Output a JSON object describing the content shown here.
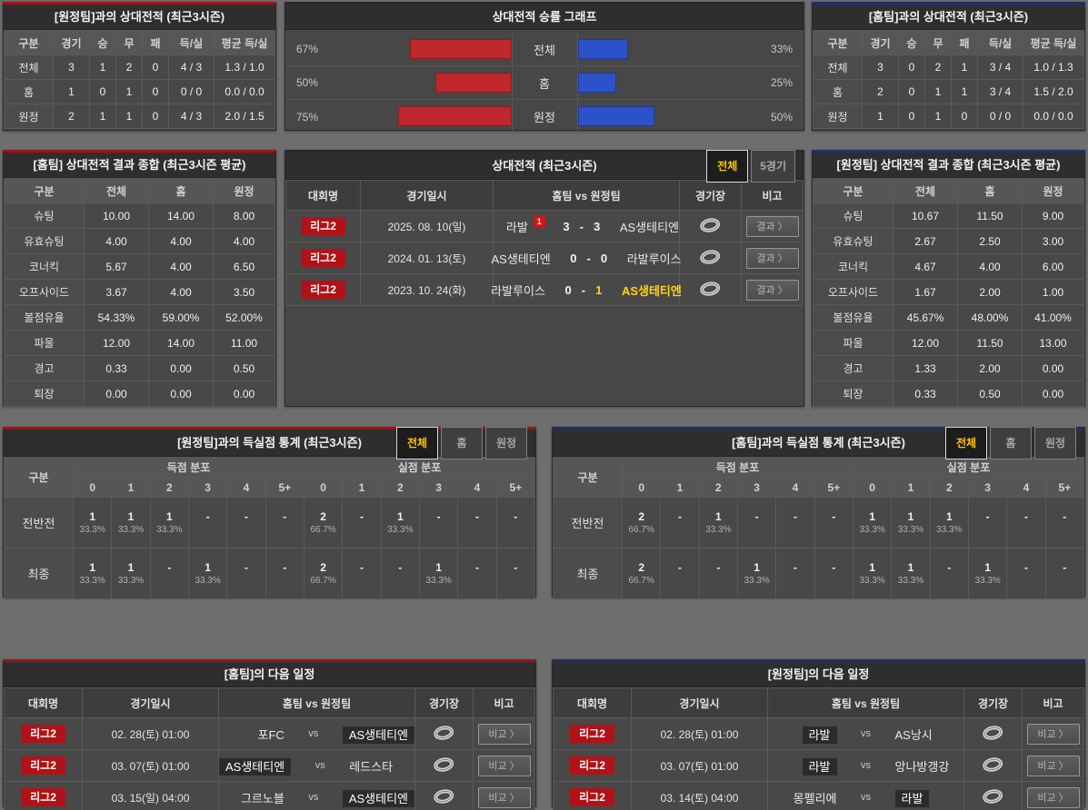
{
  "ui": {
    "vs": "vs",
    "chevron": "〉",
    "score_dash": "-"
  },
  "colors": {
    "page_bg": "#6e6e6e",
    "panel_bg": "#474747",
    "title_bg": "#2e2e2e",
    "home_accent_red": "#a01313",
    "away_accent_blue": "#1e2f6d",
    "league_badge_red": "#b11217",
    "chart_home_red": "#c0272d",
    "chart_away_blue": "#2b52cb",
    "active_tab_yellow": "#ffc600",
    "winner_yellow": "#ffd11a"
  },
  "chart_data": {
    "type": "bar",
    "orientation": "horizontal-mirrored",
    "title": "상대전적 승률 그래프",
    "categories": [
      "전체",
      "홈",
      "원정"
    ],
    "series": [
      {
        "name": "홈팀 승률",
        "color": "#c0272d",
        "values": [
          67,
          50,
          75
        ]
      },
      {
        "name": "원정팀 승률",
        "color": "#2b52cb",
        "values": [
          33,
          25,
          50
        ]
      }
    ],
    "unit": "%"
  },
  "panels": {
    "away_h2h": {
      "title": "[원정팀]과의 상대전적 (최근3시즌)",
      "headers": [
        "구분",
        "경기",
        "승",
        "무",
        "패",
        "득/실",
        "평균 득/실"
      ],
      "rows": [
        [
          "전체",
          "3",
          "1",
          "2",
          "0",
          "4 / 3",
          "1.3 / 1.0"
        ],
        [
          "홈",
          "1",
          "0",
          "1",
          "0",
          "0 / 0",
          "0.0 / 0.0"
        ],
        [
          "원정",
          "2",
          "1",
          "1",
          "0",
          "4 / 3",
          "2.0 / 1.5"
        ]
      ]
    },
    "win_rate_chart": {
      "title": "상대전적 승률 그래프",
      "categories": [
        "전체",
        "홈",
        "원정"
      ],
      "left": {
        "labels": [
          "67%",
          "50%",
          "75%"
        ],
        "values": [
          67,
          50,
          75
        ]
      },
      "right": {
        "labels": [
          "33%",
          "25%",
          "50%"
        ],
        "values": [
          33,
          25,
          50
        ]
      }
    },
    "home_h2h": {
      "title": "[홈팀]과의 상대전적 (최근3시즌)",
      "headers": [
        "구분",
        "경기",
        "승",
        "무",
        "패",
        "득/실",
        "평균 득/실"
      ],
      "rows": [
        [
          "전체",
          "3",
          "0",
          "2",
          "1",
          "3 / 4",
          "1.0 / 1.3"
        ],
        [
          "홈",
          "2",
          "0",
          "1",
          "1",
          "3 / 4",
          "1.5 / 2.0"
        ],
        [
          "원정",
          "1",
          "0",
          "1",
          "0",
          "0 / 0",
          "0.0 / 0.0"
        ]
      ]
    },
    "home_summary": {
      "title": "[홈팀] 상대전적 결과 종합 (최근3시즌 평균)",
      "headers": [
        "구분",
        "전체",
        "홈",
        "원정"
      ],
      "rows": [
        [
          "슈팅",
          "10.00",
          "14.00",
          "8.00"
        ],
        [
          "유효슈팅",
          "4.00",
          "4.00",
          "4.00"
        ],
        [
          "코너킥",
          "5.67",
          "4.00",
          "6.50"
        ],
        [
          "오프사이드",
          "3.67",
          "4.00",
          "3.50"
        ],
        [
          "볼점유율",
          "54.33%",
          "59.00%",
          "52.00%"
        ],
        [
          "파울",
          "12.00",
          "14.00",
          "11.00"
        ],
        [
          "경고",
          "0.33",
          "0.00",
          "0.50"
        ],
        [
          "퇴장",
          "0.00",
          "0.00",
          "0.00"
        ]
      ]
    },
    "away_summary": {
      "title": "[원정팀] 상대전적 결과 종합 (최근3시즌 평균)",
      "headers": [
        "구분",
        "전체",
        "홈",
        "원정"
      ],
      "rows": [
        [
          "슈팅",
          "10.67",
          "11.50",
          "9.00"
        ],
        [
          "유효슈팅",
          "2.67",
          "2.50",
          "3.00"
        ],
        [
          "코너킥",
          "4.67",
          "4.00",
          "6.00"
        ],
        [
          "오프사이드",
          "1.67",
          "2.00",
          "1.00"
        ],
        [
          "볼점유율",
          "45.67%",
          "48.00%",
          "41.00%"
        ],
        [
          "파울",
          "12.00",
          "11.50",
          "13.00"
        ],
        [
          "경고",
          "1.33",
          "2.00",
          "0.00"
        ],
        [
          "퇴장",
          "0.33",
          "0.50",
          "0.00"
        ]
      ]
    },
    "h2h_matches": {
      "title": "상대전적 (최근3시즌)",
      "tabs": [
        "전체",
        "5경기"
      ],
      "active_tab": "전체",
      "headers": [
        "대회명",
        "경기일시",
        "홈팀 vs 원정팀",
        "경기장",
        "비고"
      ],
      "action_label": "결과",
      "rows": [
        {
          "league": "리그2",
          "date": "2025. 08. 10(일)",
          "home": "라발",
          "home_red_cards": "1",
          "home_score": "3",
          "away_score": "3",
          "away": "AS생테티엔"
        },
        {
          "league": "리그2",
          "date": "2024. 01. 13(토)",
          "home": "AS생테티엔",
          "home_score": "0",
          "away_score": "0",
          "away": "라발루이스"
        },
        {
          "league": "리그2",
          "date": "2023. 10. 24(화)",
          "home": "라발루이스",
          "home_score": "0",
          "away_score": "1",
          "away": "AS생테티엔",
          "winner": "away"
        }
      ]
    },
    "away_goal_stats": {
      "title": "[원정팀]과의 득실점 통계 (최근3시즌)",
      "tabs": [
        "전체",
        "홈",
        "원정"
      ],
      "active_tab": "전체",
      "corner": "구분",
      "group_headers": [
        "득점 분포",
        "실점 분포"
      ],
      "col_headers": [
        "0",
        "1",
        "2",
        "3",
        "4",
        "5+"
      ],
      "rows": [
        {
          "label": "전반전",
          "cells": [
            {
              "n": "1",
              "p": "33.3%"
            },
            {
              "n": "1",
              "p": "33.3%"
            },
            {
              "n": "1",
              "p": "33.3%"
            },
            {
              "n": "-",
              "p": ""
            },
            {
              "n": "-",
              "p": ""
            },
            {
              "n": "-",
              "p": ""
            },
            {
              "n": "2",
              "p": "66.7%"
            },
            {
              "n": "-",
              "p": ""
            },
            {
              "n": "1",
              "p": "33.3%"
            },
            {
              "n": "-",
              "p": ""
            },
            {
              "n": "-",
              "p": ""
            },
            {
              "n": "-",
              "p": ""
            }
          ]
        },
        {
          "label": "최종",
          "cells": [
            {
              "n": "1",
              "p": "33.3%"
            },
            {
              "n": "1",
              "p": "33.3%"
            },
            {
              "n": "-",
              "p": ""
            },
            {
              "n": "1",
              "p": "33.3%"
            },
            {
              "n": "-",
              "p": ""
            },
            {
              "n": "-",
              "p": ""
            },
            {
              "n": "2",
              "p": "66.7%"
            },
            {
              "n": "-",
              "p": ""
            },
            {
              "n": "-",
              "p": ""
            },
            {
              "n": "1",
              "p": "33.3%"
            },
            {
              "n": "-",
              "p": ""
            },
            {
              "n": "-",
              "p": ""
            }
          ]
        }
      ]
    },
    "home_goal_stats": {
      "title": "[홈팀]과의 득실점 통계 (최근3시즌)",
      "tabs": [
        "전체",
        "홈",
        "원정"
      ],
      "active_tab": "전체",
      "corner": "구분",
      "group_headers": [
        "득점 분포",
        "실점 분포"
      ],
      "col_headers": [
        "0",
        "1",
        "2",
        "3",
        "4",
        "5+"
      ],
      "rows": [
        {
          "label": "전반전",
          "cells": [
            {
              "n": "2",
              "p": "66.7%"
            },
            {
              "n": "-",
              "p": ""
            },
            {
              "n": "1",
              "p": "33.3%"
            },
            {
              "n": "-",
              "p": ""
            },
            {
              "n": "-",
              "p": ""
            },
            {
              "n": "-",
              "p": ""
            },
            {
              "n": "1",
              "p": "33.3%"
            },
            {
              "n": "1",
              "p": "33.3%"
            },
            {
              "n": "1",
              "p": "33.3%"
            },
            {
              "n": "-",
              "p": ""
            },
            {
              "n": "-",
              "p": ""
            },
            {
              "n": "-",
              "p": ""
            }
          ]
        },
        {
          "label": "최종",
          "cells": [
            {
              "n": "2",
              "p": "66.7%"
            },
            {
              "n": "-",
              "p": ""
            },
            {
              "n": "-",
              "p": ""
            },
            {
              "n": "1",
              "p": "33.3%"
            },
            {
              "n": "-",
              "p": ""
            },
            {
              "n": "-",
              "p": ""
            },
            {
              "n": "1",
              "p": "33.3%"
            },
            {
              "n": "1",
              "p": "33.3%"
            },
            {
              "n": "-",
              "p": ""
            },
            {
              "n": "1",
              "p": "33.3%"
            },
            {
              "n": "-",
              "p": ""
            },
            {
              "n": "-",
              "p": ""
            }
          ]
        }
      ]
    },
    "home_schedule": {
      "title": "[홈팀]의 다음 일정",
      "headers": [
        "대회명",
        "경기일시",
        "홈팀 vs 원정팀",
        "경기장",
        "비고"
      ],
      "action_label": "비교",
      "rows": [
        {
          "league": "리그2",
          "date": "02. 28(토) 01:00",
          "home": "포FC",
          "away": "AS생테티엔"
        },
        {
          "league": "리그2",
          "date": "03. 07(토) 01:00",
          "home": "AS생테티엔",
          "away": "레드스타"
        },
        {
          "league": "리그2",
          "date": "03. 15(일) 04:00",
          "home": "그르노블",
          "away": "AS생테티엔"
        }
      ]
    },
    "away_schedule": {
      "title": "[원정팀]의 다음 일정",
      "headers": [
        "대회명",
        "경기일시",
        "홈팀 vs 원정팀",
        "경기장",
        "비고"
      ],
      "action_label": "비교",
      "rows": [
        {
          "league": "리그2",
          "date": "02. 28(토) 01:00",
          "home": "라발",
          "away": "AS낭시"
        },
        {
          "league": "리그2",
          "date": "03. 07(토) 01:00",
          "home": "라발",
          "away": "앙나방갱강"
        },
        {
          "league": "리그2",
          "date": "03. 14(토) 04:00",
          "home": "몽펠리에",
          "away": "라발"
        }
      ]
    }
  }
}
